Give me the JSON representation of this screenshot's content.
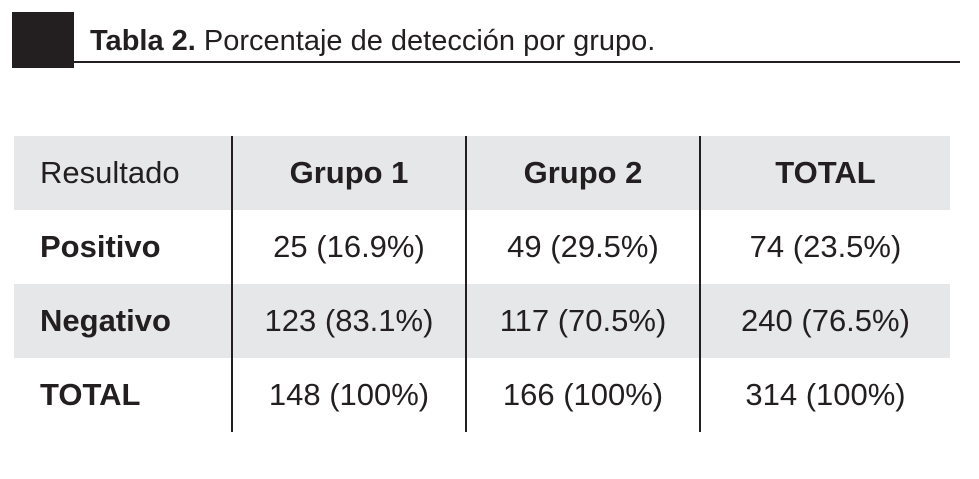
{
  "caption": {
    "label": "Tabla 2.",
    "text": "Porcentaje de detección por grupo."
  },
  "table": {
    "headers": [
      "Resultado",
      "Grupo 1",
      "Grupo 2",
      "TOTAL"
    ],
    "rows": [
      {
        "label": "Positivo",
        "cells": [
          "25 (16.9%)",
          "49 (29.5%)",
          "74 (23.5%)"
        ]
      },
      {
        "label": "Negativo",
        "cells": [
          "123 (83.1%)",
          "117 (70.5%)",
          "240 (76.5%)"
        ]
      },
      {
        "label": "TOTAL",
        "cells": [
          "148 (100%)",
          "166 (100%)",
          "314 (100%)"
        ]
      }
    ]
  },
  "colors": {
    "ink": "#231f20",
    "shade": "#e6e7e8"
  }
}
